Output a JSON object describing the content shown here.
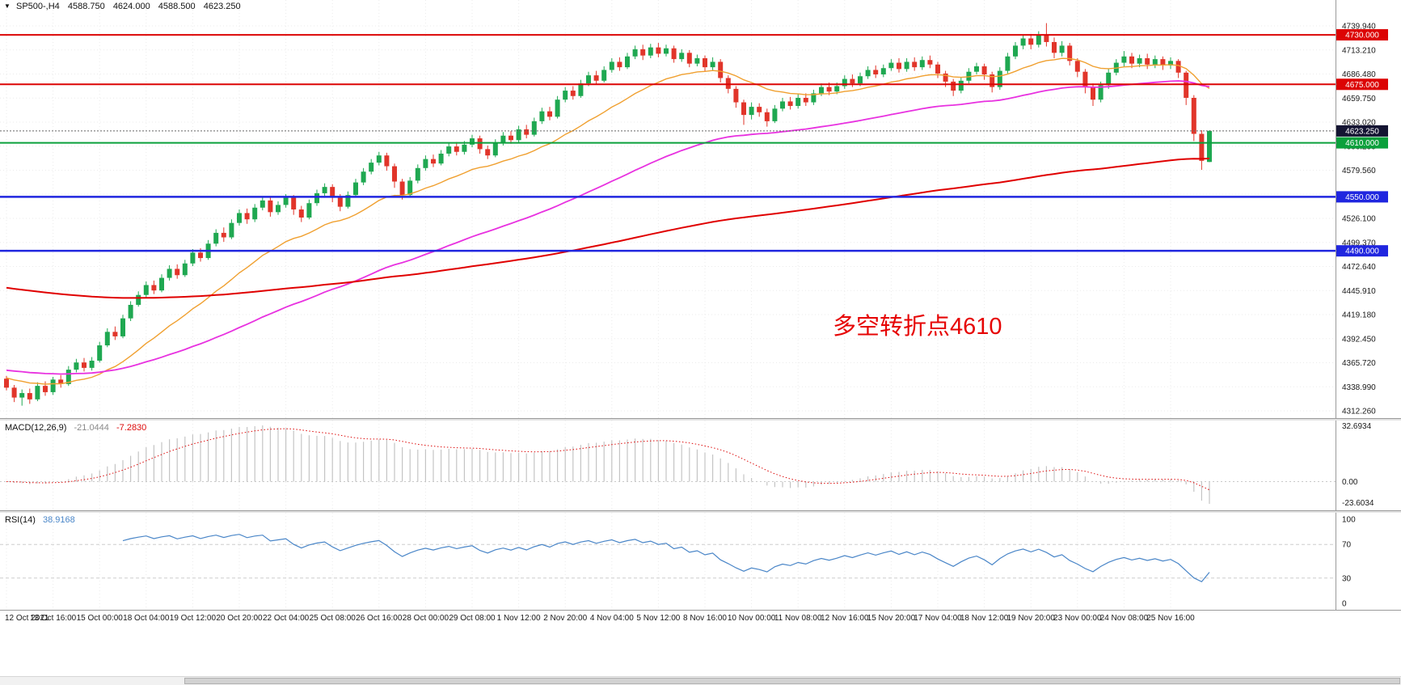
{
  "header": {
    "dropdown_icon": "▼",
    "symbol_period": "SP500-,H4",
    "open": "4588.750",
    "high": "4624.000",
    "low": "4588.500",
    "close": "4623.250"
  },
  "annotation": {
    "text": "多空转折点4610",
    "color": "#e60404"
  },
  "chart_data": {
    "type": "candlestick",
    "title": "SP500-,H4",
    "time_labels": [
      "12 Oct 2021",
      "13 Oct 16:00",
      "15 Oct 00:00",
      "18 Oct 04:00",
      "19 Oct 12:00",
      "20 Oct 20:00",
      "22 Oct 04:00",
      "25 Oct 08:00",
      "26 Oct 16:00",
      "28 Oct 00:00",
      "29 Oct 08:00",
      "1 Nov 12:00",
      "2 Nov 20:00",
      "4 Nov 04:00",
      "5 Nov 12:00",
      "8 Nov 16:00",
      "10 Nov 00:00",
      "11 Nov 08:00",
      "12 Nov 16:00",
      "15 Nov 20:00",
      "17 Nov 04:00",
      "18 Nov 12:00",
      "19 Nov 20:00",
      "23 Nov 00:00",
      "24 Nov 08:00",
      "25 Nov 16:00"
    ],
    "price_ticks": [
      "4739.940",
      "4713.210",
      "4686.480",
      "4659.750",
      "4633.020",
      "4606.290",
      "4579.560",
      "4552.830",
      "4526.100",
      "4499.370",
      "4472.640",
      "4445.910",
      "4419.180",
      "4392.450",
      "4365.720",
      "4338.990",
      "4312.260"
    ],
    "ylim": [
      4312.26,
      4739.94
    ],
    "candles": [
      [
        4348,
        4351,
        4335,
        4338
      ],
      [
        4338,
        4341,
        4322,
        4327
      ],
      [
        4327,
        4336,
        4318,
        4332
      ],
      [
        4332,
        4337,
        4320,
        4325
      ],
      [
        4325,
        4344,
        4323,
        4340
      ],
      [
        4340,
        4345,
        4329,
        4333
      ],
      [
        4333,
        4350,
        4330,
        4347
      ],
      [
        4347,
        4352,
        4338,
        4342
      ],
      [
        4342,
        4362,
        4340,
        4358
      ],
      [
        4358,
        4370,
        4355,
        4366
      ],
      [
        4366,
        4371,
        4356,
        4360
      ],
      [
        4360,
        4372,
        4357,
        4368
      ],
      [
        4368,
        4389,
        4366,
        4385
      ],
      [
        4385,
        4404,
        4383,
        4400
      ],
      [
        4400,
        4406,
        4391,
        4395
      ],
      [
        4395,
        4419,
        4393,
        4415
      ],
      [
        4415,
        4434,
        4412,
        4430
      ],
      [
        4430,
        4445,
        4428,
        4441
      ],
      [
        4441,
        4456,
        4438,
        4452
      ],
      [
        4452,
        4457,
        4442,
        4446
      ],
      [
        4446,
        4464,
        4444,
        4460
      ],
      [
        4460,
        4474,
        4457,
        4470
      ],
      [
        4470,
        4475,
        4459,
        4463
      ],
      [
        4463,
        4480,
        4461,
        4476
      ],
      [
        4476,
        4492,
        4473,
        4488
      ],
      [
        4488,
        4493,
        4478,
        4482
      ],
      [
        4482,
        4502,
        4480,
        4498
      ],
      [
        4498,
        4514,
        4495,
        4510
      ],
      [
        4510,
        4516,
        4500,
        4505
      ],
      [
        4505,
        4525,
        4503,
        4521
      ],
      [
        4521,
        4536,
        4518,
        4532
      ],
      [
        4532,
        4537,
        4520,
        4525
      ],
      [
        4525,
        4542,
        4522,
        4538
      ],
      [
        4538,
        4550,
        4535,
        4546
      ],
      [
        4546,
        4549,
        4528,
        4533
      ],
      [
        4533,
        4545,
        4530,
        4541
      ],
      [
        4541,
        4553,
        4538,
        4549
      ],
      [
        4549,
        4552,
        4530,
        4536
      ],
      [
        4536,
        4540,
        4522,
        4527
      ],
      [
        4527,
        4547,
        4525,
        4543
      ],
      [
        4543,
        4558,
        4540,
        4554
      ],
      [
        4554,
        4565,
        4551,
        4561
      ],
      [
        4561,
        4564,
        4544,
        4549
      ],
      [
        4549,
        4553,
        4534,
        4539
      ],
      [
        4539,
        4556,
        4537,
        4552
      ],
      [
        4552,
        4570,
        4549,
        4566
      ],
      [
        4566,
        4582,
        4563,
        4578
      ],
      [
        4578,
        4592,
        4575,
        4588
      ],
      [
        4588,
        4600,
        4585,
        4596
      ],
      [
        4596,
        4599,
        4579,
        4584
      ],
      [
        4584,
        4587,
        4560,
        4567
      ],
      [
        4567,
        4570,
        4547,
        4552
      ],
      [
        4552,
        4572,
        4549,
        4568
      ],
      [
        4568,
        4586,
        4565,
        4582
      ],
      [
        4582,
        4596,
        4579,
        4592
      ],
      [
        4592,
        4597,
        4583,
        4587
      ],
      [
        4587,
        4602,
        4585,
        4598
      ],
      [
        4598,
        4610,
        4595,
        4606
      ],
      [
        4606,
        4611,
        4596,
        4600
      ],
      [
        4600,
        4612,
        4597,
        4608
      ],
      [
        4608,
        4619,
        4605,
        4615
      ],
      [
        4615,
        4618,
        4598,
        4603
      ],
      [
        4603,
        4607,
        4592,
        4596
      ],
      [
        4596,
        4614,
        4594,
        4610
      ],
      [
        4610,
        4622,
        4607,
        4618
      ],
      [
        4618,
        4623,
        4609,
        4613
      ],
      [
        4613,
        4629,
        4610,
        4625
      ],
      [
        4625,
        4630,
        4615,
        4619
      ],
      [
        4619,
        4638,
        4617,
        4634
      ],
      [
        4634,
        4649,
        4631,
        4645
      ],
      [
        4645,
        4650,
        4635,
        4639
      ],
      [
        4639,
        4662,
        4637,
        4658
      ],
      [
        4658,
        4672,
        4655,
        4668
      ],
      [
        4668,
        4673,
        4658,
        4662
      ],
      [
        4662,
        4680,
        4660,
        4676
      ],
      [
        4676,
        4689,
        4673,
        4685
      ],
      [
        4685,
        4690,
        4675,
        4679
      ],
      [
        4679,
        4695,
        4677,
        4691
      ],
      [
        4691,
        4704,
        4688,
        4700
      ],
      [
        4700,
        4705,
        4690,
        4694
      ],
      [
        4694,
        4710,
        4692,
        4706
      ],
      [
        4706,
        4718,
        4703,
        4714
      ],
      [
        4714,
        4719,
        4702,
        4707
      ],
      [
        4707,
        4720,
        4704,
        4716
      ],
      [
        4716,
        4721,
        4705,
        4709
      ],
      [
        4709,
        4719,
        4706,
        4715
      ],
      [
        4715,
        4718,
        4699,
        4703
      ],
      [
        4703,
        4714,
        4700,
        4710
      ],
      [
        4710,
        4713,
        4694,
        4698
      ],
      [
        4698,
        4708,
        4695,
        4704
      ],
      [
        4704,
        4707,
        4689,
        4694
      ],
      [
        4694,
        4705,
        4691,
        4700
      ],
      [
        4700,
        4703,
        4677,
        4682
      ],
      [
        4682,
        4685,
        4665,
        4670
      ],
      [
        4670,
        4673,
        4649,
        4655
      ],
      [
        4655,
        4658,
        4630,
        4641
      ],
      [
        4641,
        4655,
        4636,
        4650
      ],
      [
        4650,
        4654,
        4639,
        4644
      ],
      [
        4644,
        4648,
        4628,
        4634
      ],
      [
        4634,
        4652,
        4632,
        4648
      ],
      [
        4648,
        4660,
        4645,
        4656
      ],
      [
        4656,
        4661,
        4647,
        4651
      ],
      [
        4651,
        4664,
        4648,
        4660
      ],
      [
        4660,
        4665,
        4651,
        4655
      ],
      [
        4655,
        4669,
        4652,
        4665
      ],
      [
        4665,
        4676,
        4662,
        4672
      ],
      [
        4672,
        4677,
        4663,
        4667
      ],
      [
        4667,
        4677,
        4664,
        4673
      ],
      [
        4673,
        4685,
        4670,
        4681
      ],
      [
        4681,
        4686,
        4672,
        4676
      ],
      [
        4676,
        4688,
        4673,
        4684
      ],
      [
        4684,
        4695,
        4681,
        4691
      ],
      [
        4691,
        4696,
        4682,
        4686
      ],
      [
        4686,
        4697,
        4683,
        4693
      ],
      [
        4693,
        4703,
        4690,
        4699
      ],
      [
        4699,
        4704,
        4688,
        4692
      ],
      [
        4692,
        4704,
        4689,
        4700
      ],
      [
        4700,
        4705,
        4690,
        4694
      ],
      [
        4694,
        4706,
        4691,
        4702
      ],
      [
        4702,
        4707,
        4693,
        4697
      ],
      [
        4697,
        4700,
        4682,
        4687
      ],
      [
        4687,
        4690,
        4672,
        4678
      ],
      [
        4678,
        4681,
        4662,
        4668
      ],
      [
        4668,
        4683,
        4665,
        4679
      ],
      [
        4679,
        4693,
        4676,
        4689
      ],
      [
        4689,
        4699,
        4686,
        4695
      ],
      [
        4695,
        4698,
        4680,
        4686
      ],
      [
        4686,
        4689,
        4666,
        4672
      ],
      [
        4672,
        4694,
        4669,
        4690
      ],
      [
        4690,
        4710,
        4687,
        4706
      ],
      [
        4706,
        4722,
        4703,
        4718
      ],
      [
        4718,
        4730,
        4714,
        4726
      ],
      [
        4726,
        4731,
        4714,
        4719
      ],
      [
        4719,
        4734,
        4716,
        4730
      ],
      [
        4730,
        4743,
        4717,
        4722
      ],
      [
        4722,
        4727,
        4704,
        4710
      ],
      [
        4710,
        4723,
        4706,
        4718
      ],
      [
        4718,
        4721,
        4696,
        4701
      ],
      [
        4701,
        4704,
        4683,
        4689
      ],
      [
        4689,
        4692,
        4665,
        4672
      ],
      [
        4672,
        4676,
        4651,
        4658
      ],
      [
        4658,
        4678,
        4655,
        4674
      ],
      [
        4674,
        4692,
        4670,
        4688
      ],
      [
        4688,
        4703,
        4685,
        4699
      ],
      [
        4699,
        4712,
        4695,
        4706
      ],
      [
        4706,
        4710,
        4693,
        4698
      ],
      [
        4698,
        4708,
        4694,
        4704
      ],
      [
        4704,
        4709,
        4692,
        4697
      ],
      [
        4697,
        4707,
        4693,
        4703
      ],
      [
        4703,
        4706,
        4691,
        4696
      ],
      [
        4696,
        4705,
        4692,
        4701
      ],
      [
        4701,
        4703,
        4682,
        4688
      ],
      [
        4688,
        4690,
        4652,
        4660
      ],
      [
        4660,
        4663,
        4612,
        4620
      ],
      [
        4620,
        4624,
        4580,
        4590
      ],
      [
        4588.75,
        4624,
        4588.5,
        4623.25
      ]
    ],
    "hlines": [
      {
        "value": 4730,
        "label": "4730.000",
        "color": "#dc0404",
        "width": 2
      },
      {
        "value": 4675,
        "label": "4675.000",
        "color": "#dc0404",
        "width": 2
      },
      {
        "value": 4610,
        "label": "4610.000",
        "color": "#0ba03c",
        "width": 2
      },
      {
        "value": 4550,
        "label": "4550.000",
        "color": "#2026df",
        "width": 2.5
      },
      {
        "value": 4490,
        "label": "4490.000",
        "color": "#2026df",
        "width": 2.5
      }
    ],
    "current_price": {
      "value": 4623.25,
      "label": "4623.250",
      "line_color": "#666666",
      "badge_bg": "#141432"
    },
    "moving_averages": [
      {
        "name": "fast",
        "period": 19,
        "seed": 4350,
        "color": "#f0a030",
        "width": 1.4
      },
      {
        "name": "medium",
        "period": 65,
        "seed": 4358,
        "color": "#e832e0",
        "width": 1.8
      },
      {
        "name": "slow",
        "period": 220,
        "seed": 4450,
        "color": "#e00000",
        "width": 2
      }
    ],
    "macd": {
      "label": "MACD(12,26,9)",
      "params": [
        12,
        26,
        9
      ],
      "value_main": "-21.0444",
      "value_signal": "-7.2830",
      "scale_ticks": [
        "32.6934",
        "0.00",
        "-23.6034"
      ],
      "histogram_color": "#c4c4c4",
      "signal_color": "#dd0a0a"
    },
    "rsi": {
      "label": "RSI(14)",
      "period": 14,
      "value": "38.9168",
      "scale_ticks": [
        100,
        70,
        30,
        0
      ],
      "levels": [
        70,
        30
      ],
      "line_color": "#4a86c8"
    },
    "style": {
      "up_color": "#1fa851",
      "down_color": "#e1352a",
      "grid_color": "#ebebeb",
      "axis_line_color": "#9a9a9a",
      "text_color": "#1a1a1a"
    }
  }
}
